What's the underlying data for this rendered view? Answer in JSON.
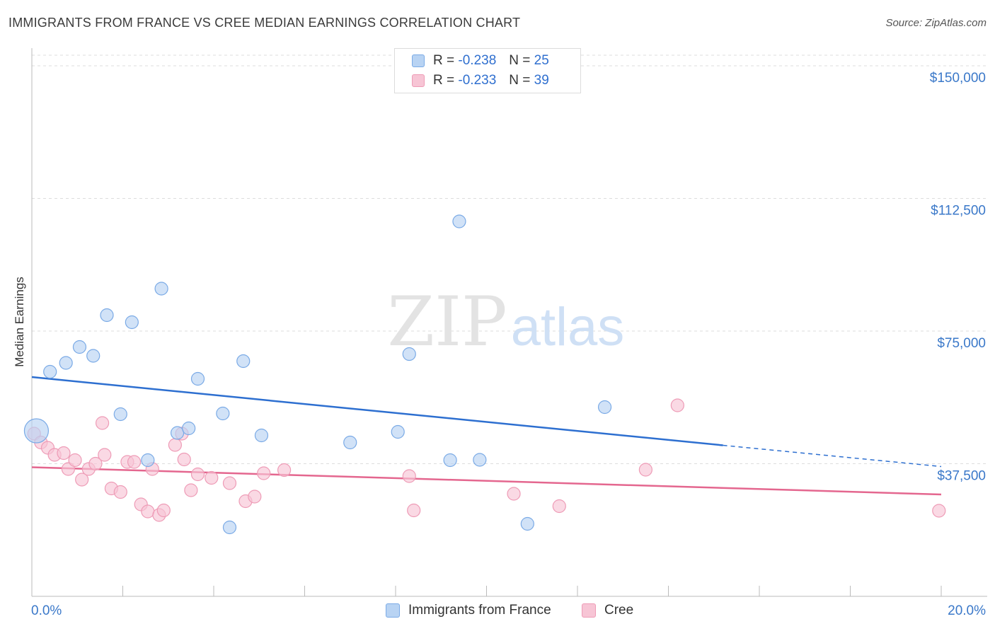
{
  "title": "IMMIGRANTS FROM FRANCE VS CREE MEDIAN EARNINGS CORRELATION CHART",
  "source": "Source: ZipAtlas.com",
  "watermark": {
    "zip": "ZIP",
    "atlas": "atlas"
  },
  "colors": {
    "blue_fill": "#b8d3f3",
    "blue_stroke": "#7aaae6",
    "blue_line": "#2d6fd0",
    "pink_fill": "#f7c5d5",
    "pink_stroke": "#ee9bb6",
    "pink_line": "#e4678f",
    "tick_text": "#3a78c9",
    "grid": "#dddddd"
  },
  "legend": {
    "r_label": "R =",
    "n_label": "N =",
    "blue": {
      "r": "-0.238",
      "n": "25"
    },
    "pink": {
      "r": "-0.233",
      "n": "39"
    }
  },
  "chart_data": {
    "type": "scatter",
    "xlabel": "",
    "ylabel": "Median Earnings",
    "xlim": [
      0,
      20
    ],
    "ylim": [
      0,
      153000
    ],
    "x_tick_labels": [
      "0.0%",
      "20.0%"
    ],
    "y_ticks": [
      37500,
      75000,
      112500,
      150000
    ],
    "y_tick_labels": [
      "$37,500",
      "$75,000",
      "$112,500",
      "$150,000"
    ],
    "grid": true,
    "series": [
      {
        "name": "Immigrants from France",
        "color": "blue",
        "trend": {
          "x0": 0,
          "y0": 62000,
          "x1": 15.2,
          "y1": 42700,
          "x_ext": 20,
          "y_ext": 36700
        },
        "points": [
          {
            "x": 0.1,
            "y": 46800,
            "big": true
          },
          {
            "x": 0.4,
            "y": 63500
          },
          {
            "x": 0.75,
            "y": 66000
          },
          {
            "x": 1.05,
            "y": 70500
          },
          {
            "x": 1.35,
            "y": 68000
          },
          {
            "x": 1.65,
            "y": 79500
          },
          {
            "x": 1.95,
            "y": 51500
          },
          {
            "x": 2.2,
            "y": 77500
          },
          {
            "x": 2.55,
            "y": 38500
          },
          {
            "x": 2.85,
            "y": 87000
          },
          {
            "x": 3.2,
            "y": 46200
          },
          {
            "x": 3.45,
            "y": 47500
          },
          {
            "x": 3.65,
            "y": 61500
          },
          {
            "x": 4.2,
            "y": 51700
          },
          {
            "x": 4.35,
            "y": 19500
          },
          {
            "x": 4.65,
            "y": 66500
          },
          {
            "x": 5.05,
            "y": 45500
          },
          {
            "x": 7.0,
            "y": 43500
          },
          {
            "x": 8.05,
            "y": 46500
          },
          {
            "x": 8.3,
            "y": 68500
          },
          {
            "x": 9.2,
            "y": 38500
          },
          {
            "x": 9.4,
            "y": 106000
          },
          {
            "x": 9.85,
            "y": 38600
          },
          {
            "x": 10.9,
            "y": 20500
          },
          {
            "x": 12.6,
            "y": 53500
          }
        ]
      },
      {
        "name": "Cree",
        "color": "pink",
        "trend": {
          "x0": 0,
          "y0": 36500,
          "x1": 20,
          "y1": 28800
        },
        "points": [
          {
            "x": 0.05,
            "y": 46000
          },
          {
            "x": 0.2,
            "y": 43500
          },
          {
            "x": 0.35,
            "y": 42000
          },
          {
            "x": 0.5,
            "y": 40000
          },
          {
            "x": 0.7,
            "y": 40500
          },
          {
            "x": 0.8,
            "y": 36000
          },
          {
            "x": 0.95,
            "y": 38500
          },
          {
            "x": 1.1,
            "y": 33000
          },
          {
            "x": 1.25,
            "y": 36000
          },
          {
            "x": 1.4,
            "y": 37500
          },
          {
            "x": 1.55,
            "y": 49000
          },
          {
            "x": 1.6,
            "y": 40000
          },
          {
            "x": 1.75,
            "y": 30500
          },
          {
            "x": 1.95,
            "y": 29500
          },
          {
            "x": 2.1,
            "y": 38000
          },
          {
            "x": 2.25,
            "y": 38000
          },
          {
            "x": 2.4,
            "y": 26000
          },
          {
            "x": 2.55,
            "y": 24000
          },
          {
            "x": 2.65,
            "y": 36000
          },
          {
            "x": 2.8,
            "y": 23000
          },
          {
            "x": 2.9,
            "y": 24300
          },
          {
            "x": 3.15,
            "y": 42800
          },
          {
            "x": 3.3,
            "y": 46000
          },
          {
            "x": 3.35,
            "y": 38700
          },
          {
            "x": 3.5,
            "y": 30000
          },
          {
            "x": 3.65,
            "y": 34500
          },
          {
            "x": 3.95,
            "y": 33500
          },
          {
            "x": 4.35,
            "y": 32000
          },
          {
            "x": 4.7,
            "y": 26900
          },
          {
            "x": 4.9,
            "y": 28200
          },
          {
            "x": 5.1,
            "y": 34800
          },
          {
            "x": 5.55,
            "y": 35700
          },
          {
            "x": 8.3,
            "y": 34000
          },
          {
            "x": 8.4,
            "y": 24300
          },
          {
            "x": 10.6,
            "y": 29000
          },
          {
            "x": 11.6,
            "y": 25500
          },
          {
            "x": 13.5,
            "y": 35800
          },
          {
            "x": 14.2,
            "y": 54000
          },
          {
            "x": 19.95,
            "y": 24200
          }
        ]
      }
    ]
  },
  "bottom_legend": {
    "blue_label": "Immigrants from France",
    "pink_label": "Cree"
  }
}
